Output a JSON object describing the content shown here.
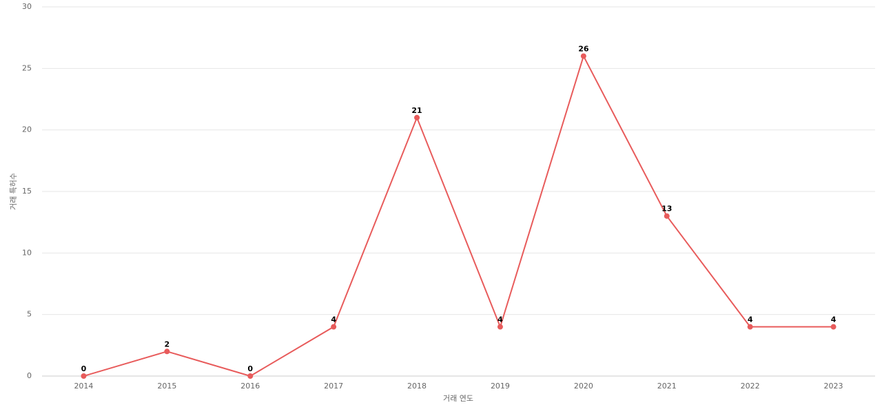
{
  "chart_data": {
    "type": "line",
    "x_label": "거래 연도",
    "y_label": "거래 특허수",
    "categories": [
      "2014",
      "2015",
      "2016",
      "2017",
      "2018",
      "2019",
      "2020",
      "2021",
      "2022",
      "2023"
    ],
    "series": [
      {
        "name": "거래 특허수",
        "color": "#e85b5b",
        "values": [
          0,
          2,
          0,
          4,
          21,
          4,
          26,
          13,
          4,
          4
        ]
      }
    ],
    "ylim": [
      0,
      30
    ],
    "yticks": [
      0,
      5,
      10,
      15,
      20,
      25,
      30
    ],
    "grid": true
  }
}
